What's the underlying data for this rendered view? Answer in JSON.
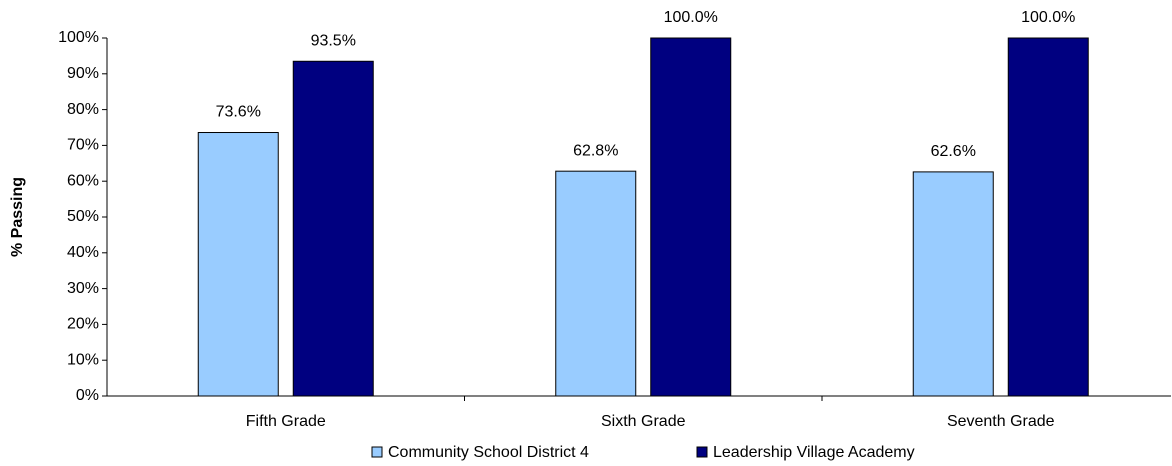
{
  "chart_data": {
    "type": "bar",
    "y_label": "% Passing",
    "categories": [
      "Fifth Grade",
      "Sixth Grade",
      "Seventh Grade"
    ],
    "series": [
      {
        "name": "Community School District 4",
        "color": "#99ccff",
        "values": [
          73.6,
          62.8,
          62.6
        ],
        "value_labels": [
          "73.6%",
          "62.8%",
          "62.6%"
        ]
      },
      {
        "name": "Leadership Village Academy",
        "color": "#000080",
        "values": [
          93.5,
          100,
          100
        ],
        "value_labels": [
          "93.5%",
          "100.0%",
          "100.0%"
        ]
      }
    ],
    "ylim": [
      0,
      100
    ],
    "yticks": [
      {
        "value": 0,
        "label": "0%"
      },
      {
        "value": 10,
        "label": "10%"
      },
      {
        "value": 20,
        "label": "20%"
      },
      {
        "value": 30,
        "label": "30%"
      },
      {
        "value": 40,
        "label": "40%"
      },
      {
        "value": 50,
        "label": "50%"
      },
      {
        "value": 60,
        "label": "60%"
      },
      {
        "value": 70,
        "label": "70%"
      },
      {
        "value": 80,
        "label": "80%"
      },
      {
        "value": 90,
        "label": "90%"
      },
      {
        "value": 100,
        "label": "100%"
      }
    ],
    "grid": false,
    "legend": "bottom"
  }
}
